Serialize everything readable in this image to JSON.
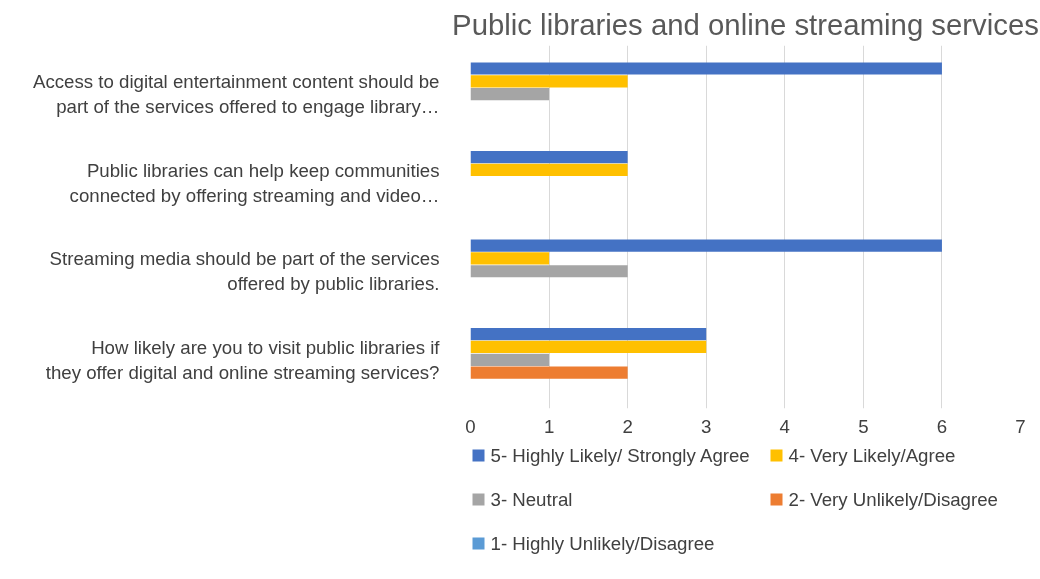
{
  "chart_data": {
    "type": "bar",
    "orientation": "horizontal",
    "title": "Public libraries and online streaming services",
    "categories": [
      "Access to digital entertainment content should be part of the services offered to engage library…",
      "Public libraries can help keep communities connected by offering streaming and video…",
      "Streaming media should be part of the services offered by public libraries.",
      "How likely are you to visit public libraries if they offer digital and online streaming services?"
    ],
    "series": [
      {
        "name": "5- Highly Likely/ Strongly Agree",
        "color": "#4472c4",
        "values": [
          6,
          2,
          6,
          3
        ]
      },
      {
        "name": "4- Very Likely/Agree",
        "color": "#ffc000",
        "values": [
          2,
          2,
          1,
          3
        ]
      },
      {
        "name": "3- Neutral",
        "color": "#a5a5a5",
        "values": [
          1,
          0,
          2,
          1
        ]
      },
      {
        "name": "2- Very Unlikely/Disagree",
        "color": "#ed7d31",
        "values": [
          0,
          0,
          0,
          2
        ]
      },
      {
        "name": "1- Highly Unlikely/Disagree",
        "color": "#5b9bd5",
        "values": [
          0,
          0,
          0,
          0
        ]
      }
    ],
    "xlim": [
      0,
      7
    ],
    "xticks": [
      0,
      1,
      2,
      3,
      4,
      5,
      6,
      7
    ],
    "grid": "x",
    "legend": "bottom"
  }
}
